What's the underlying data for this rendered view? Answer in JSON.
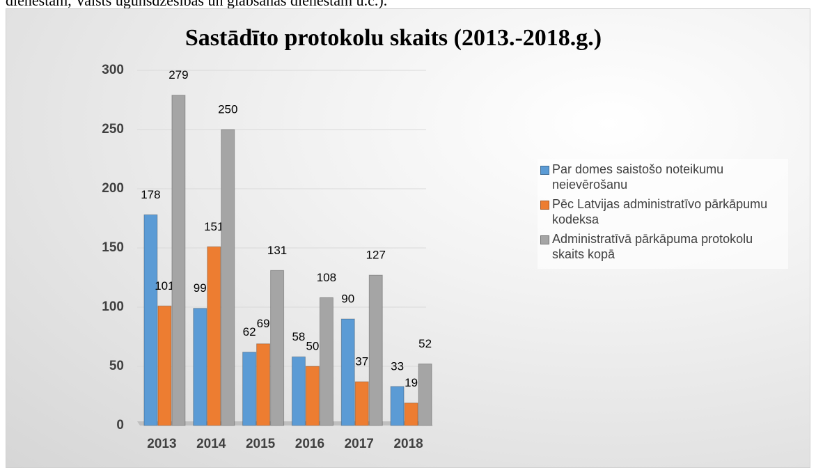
{
  "document_text": "dienestam, Valsts ugunsdzēsības un glābšanas dienestam u.c.).",
  "chart_data": {
    "type": "bar",
    "title": "Sastādīto protokolu skaits (2013.-2018.g.)",
    "categories": [
      "2013",
      "2014",
      "2015",
      "2016",
      "2017",
      "2018"
    ],
    "series": [
      {
        "name": "Par domes saistošo noteikumu neievērošanu",
        "color": "#5b9bd5",
        "values": [
          178,
          99,
          62,
          58,
          90,
          33
        ]
      },
      {
        "name": "Pēc Latvijas administratīvo pārkāpumu kodeksa",
        "color": "#ed7d31",
        "values": [
          101,
          151,
          69,
          50,
          37,
          19
        ]
      },
      {
        "name": "Administratīvā pārkāpuma protokolu skaits kopā",
        "color": "#a5a5a5",
        "values": [
          279,
          250,
          131,
          108,
          127,
          52
        ]
      }
    ],
    "ylim": [
      0,
      300
    ],
    "yticks": [
      0,
      50,
      100,
      150,
      200,
      250,
      300
    ],
    "grid": true,
    "legend": "right"
  }
}
